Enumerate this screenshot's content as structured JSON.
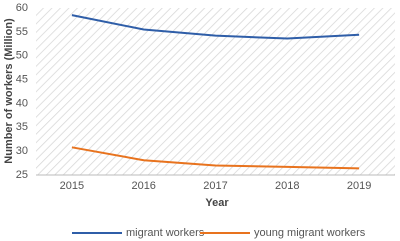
{
  "chart_data": {
    "type": "line",
    "x_label": "Year",
    "y_label": "Number of workers (Million)",
    "categories": [
      "2015",
      "2016",
      "2017",
      "2018",
      "2019"
    ],
    "series": [
      {
        "name": "migrant workers",
        "color": "#2f5ea8",
        "values": [
          58.5,
          55.5,
          54.2,
          53.6,
          54.4
        ]
      },
      {
        "name": "young migrant workers",
        "color": "#e8731e",
        "values": [
          30.8,
          28.1,
          27.0,
          26.7,
          26.4
        ]
      }
    ],
    "ylim": [
      25,
      60
    ],
    "yticks": [
      25,
      30,
      35,
      40,
      45,
      50,
      55,
      60
    ],
    "legend": "bottom"
  }
}
